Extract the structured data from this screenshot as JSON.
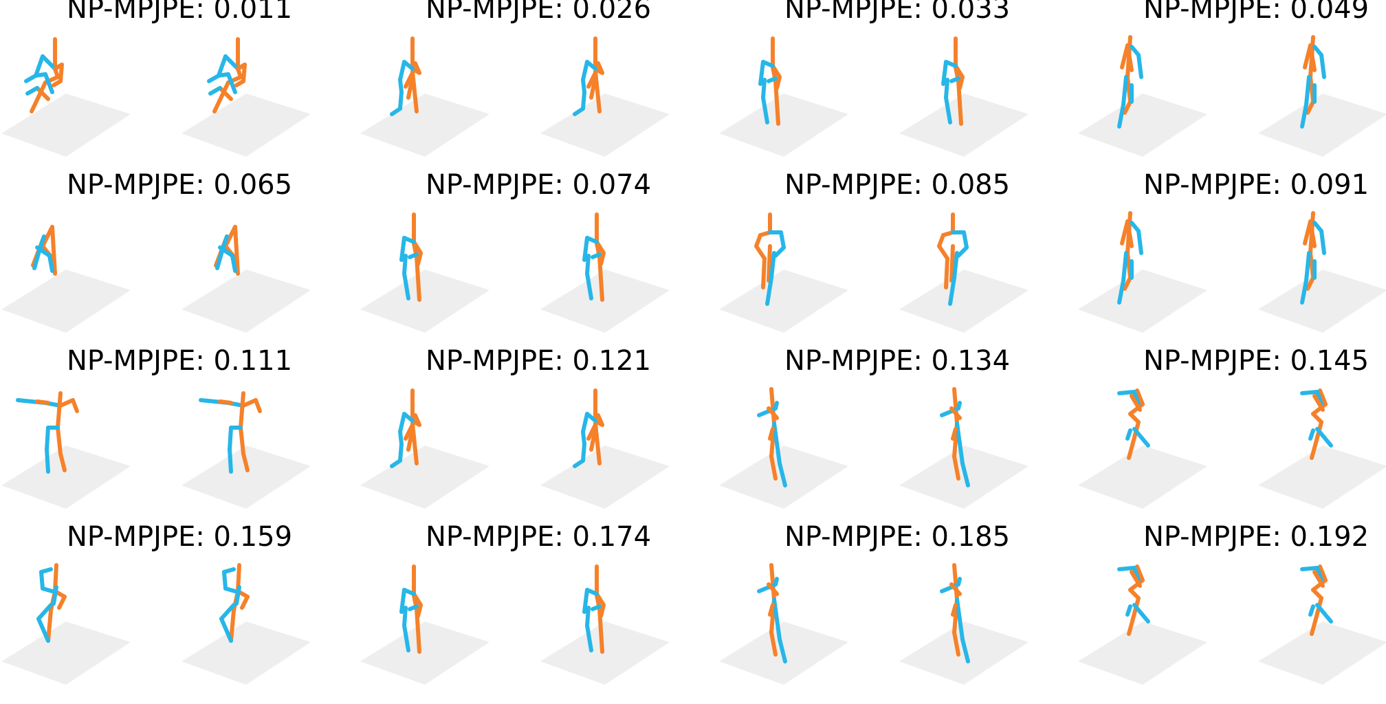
{
  "colors": {
    "left_limb": "#27b6e8",
    "right_limb": "#f5812a",
    "ground": "#eeeeee"
  },
  "panels": [
    {
      "title": "NP-MPJPE: 0.011",
      "pose": "sit"
    },
    {
      "title": "NP-MPJPE: 0.026",
      "pose": "walk"
    },
    {
      "title": "NP-MPJPE: 0.033",
      "pose": "stand"
    },
    {
      "title": "NP-MPJPE: 0.049",
      "pose": "lean"
    },
    {
      "title": "NP-MPJPE: 0.065",
      "pose": "crouch"
    },
    {
      "title": "NP-MPJPE: 0.074",
      "pose": "stand"
    },
    {
      "title": "NP-MPJPE: 0.085",
      "pose": "hips"
    },
    {
      "title": "NP-MPJPE: 0.091",
      "pose": "lean"
    },
    {
      "title": "NP-MPJPE: 0.111",
      "pose": "tpose"
    },
    {
      "title": "NP-MPJPE: 0.121",
      "pose": "walk"
    },
    {
      "title": "NP-MPJPE: 0.134",
      "pose": "reach"
    },
    {
      "title": "NP-MPJPE: 0.145",
      "pose": "kick"
    },
    {
      "title": "NP-MPJPE: 0.159",
      "pose": "lunge"
    },
    {
      "title": "NP-MPJPE: 0.174",
      "pose": "stand"
    },
    {
      "title": "NP-MPJPE: 0.185",
      "pose": "reach"
    },
    {
      "title": "NP-MPJPE: 0.192",
      "pose": "kick"
    }
  ]
}
